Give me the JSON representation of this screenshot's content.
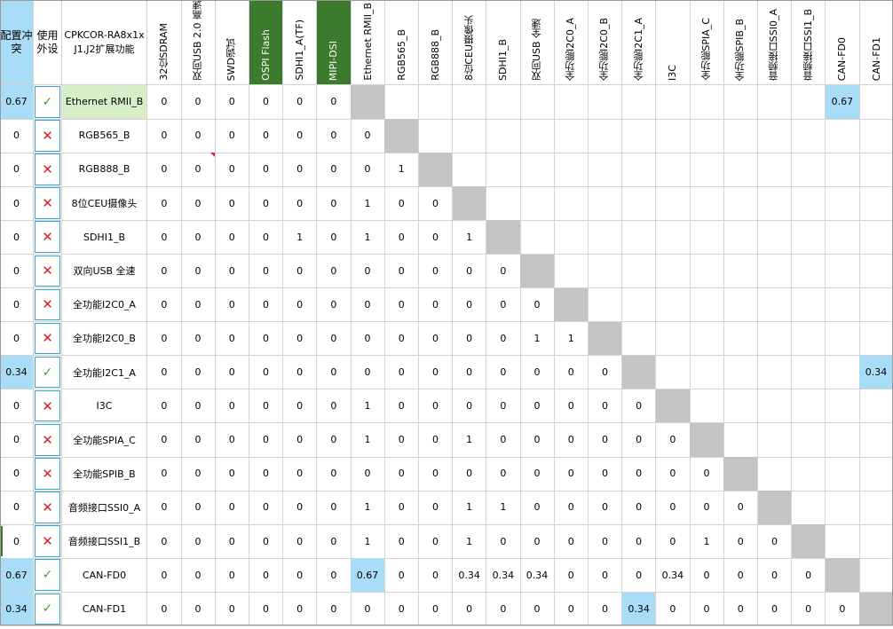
{
  "colors": {
    "blue_fill": "#a9dcf7",
    "green_header": "#3c7a2d",
    "green_row": "#d7efc8",
    "diag_gray": "#c4c4c4",
    "check_green": "#4a9a3a",
    "cross_red": "#e02020"
  },
  "corner": {
    "conflict_label": "配置冲突",
    "use_label": "使用外设",
    "title": "CPKCOR-RA8x1x J1,J2扩展功能"
  },
  "columns": [
    {
      "label": "32位SDRAM",
      "style": "normal"
    },
    {
      "label": "双向USB 2.0 高速",
      "style": "normal"
    },
    {
      "label": "SWD调试",
      "style": "normal"
    },
    {
      "label": "OSPI Flash",
      "style": "green"
    },
    {
      "label": "SDHI1_A(TF)",
      "style": "normal"
    },
    {
      "label": "MIPI-DSI",
      "style": "green"
    },
    {
      "label": "Ethernet RMII_B",
      "style": "normal"
    },
    {
      "label": "RGB565_B",
      "style": "normal"
    },
    {
      "label": "RGB888_B",
      "style": "normal"
    },
    {
      "label": "8位CEU摄像头",
      "style": "normal"
    },
    {
      "label": "SDHI1_B",
      "style": "normal"
    },
    {
      "label": "双向USB 全速",
      "style": "normal"
    },
    {
      "label": "全功能I2C0_A",
      "style": "normal"
    },
    {
      "label": "全功能I2C0_B",
      "style": "normal"
    },
    {
      "label": "全功能I2C1_A",
      "style": "normal"
    },
    {
      "label": "I3C",
      "style": "normal"
    },
    {
      "label": "全功能SPIA_C",
      "style": "normal"
    },
    {
      "label": "全功能SPIB_B",
      "style": "normal"
    },
    {
      "label": "音频接口SSI0_A",
      "style": "normal"
    },
    {
      "label": "音频接口SSI1_B",
      "style": "normal"
    },
    {
      "label": "CAN-FD0",
      "style": "normal"
    },
    {
      "label": "CAN-FD1",
      "style": "normal"
    }
  ],
  "rows": [
    {
      "conflict": "0.67",
      "conflict_hl": true,
      "use": "✓",
      "use_state": "yes",
      "name": "Ethernet RMII_B",
      "name_hl": true,
      "cells": [
        "0",
        "0",
        "0",
        "0",
        "0",
        "0",
        "",
        "",
        "",
        "",
        "",
        "",
        "",
        "",
        "",
        "",
        "",
        "",
        "",
        "",
        "0.67",
        ""
      ],
      "hl_cols": [
        20
      ]
    },
    {
      "conflict": "0",
      "use": "✕",
      "use_state": "no",
      "name": "RGB565_B",
      "cells": [
        "0",
        "0",
        "0",
        "0",
        "0",
        "0",
        "0",
        "",
        "",
        "",
        "",
        "",
        "",
        "",
        "",
        "",
        "",
        "",
        "",
        "",
        "",
        ""
      ]
    },
    {
      "conflict": "0",
      "use": "✕",
      "use_state": "no",
      "name": "RGB888_B",
      "cells": [
        "0",
        "0",
        "0",
        "0",
        "0",
        "0",
        "0",
        "1",
        "",
        "",
        "",
        "",
        "",
        "",
        "",
        "",
        "",
        "",
        "",
        "",
        "",
        ""
      ]
    },
    {
      "conflict": "0",
      "use": "✕",
      "use_state": "no",
      "name": "8位CEU摄像头",
      "cells": [
        "0",
        "0",
        "0",
        "0",
        "0",
        "0",
        "1",
        "0",
        "0",
        "",
        "",
        "",
        "",
        "",
        "",
        "",
        "",
        "",
        "",
        "",
        "",
        ""
      ]
    },
    {
      "conflict": "0",
      "use": "✕",
      "use_state": "no",
      "name": "SDHI1_B",
      "cells": [
        "0",
        "0",
        "0",
        "0",
        "1",
        "0",
        "1",
        "0",
        "0",
        "1",
        "",
        "",
        "",
        "",
        "",
        "",
        "",
        "",
        "",
        "",
        "",
        ""
      ]
    },
    {
      "conflict": "0",
      "use": "✕",
      "use_state": "no",
      "name": "双向USB 全速",
      "cells": [
        "0",
        "0",
        "0",
        "0",
        "0",
        "0",
        "0",
        "0",
        "0",
        "0",
        "0",
        "",
        "",
        "",
        "",
        "",
        "",
        "",
        "",
        "",
        "",
        ""
      ]
    },
    {
      "conflict": "0",
      "use": "✕",
      "use_state": "no",
      "name": "全功能I2C0_A",
      "cells": [
        "0",
        "0",
        "0",
        "0",
        "0",
        "0",
        "0",
        "0",
        "0",
        "0",
        "0",
        "0",
        "",
        "",
        "",
        "",
        "",
        "",
        "",
        "",
        "",
        ""
      ]
    },
    {
      "conflict": "0",
      "use": "✕",
      "use_state": "no",
      "name": "全功能I2C0_B",
      "cells": [
        "0",
        "0",
        "0",
        "0",
        "0",
        "0",
        "0",
        "0",
        "0",
        "0",
        "0",
        "1",
        "1",
        "",
        "",
        "",
        "",
        "",
        "",
        "",
        "",
        ""
      ]
    },
    {
      "conflict": "0.34",
      "conflict_hl": true,
      "use": "✓",
      "use_state": "yes",
      "name": "全功能I2C1_A",
      "cells": [
        "0",
        "0",
        "0",
        "0",
        "0",
        "0",
        "0",
        "0",
        "0",
        "0",
        "0",
        "0",
        "0",
        "0",
        "",
        "",
        "",
        "",
        "",
        "",
        "",
        "0.34"
      ],
      "hl_cols": [
        21
      ]
    },
    {
      "conflict": "0",
      "use": "✕",
      "use_state": "no",
      "name": "I3C",
      "cells": [
        "0",
        "0",
        "0",
        "0",
        "0",
        "0",
        "1",
        "0",
        "0",
        "0",
        "0",
        "0",
        "0",
        "0",
        "0",
        "",
        "",
        "",
        "",
        "",
        "",
        ""
      ]
    },
    {
      "conflict": "0",
      "use": "✕",
      "use_state": "no",
      "name": "全功能SPIA_C",
      "cells": [
        "0",
        "0",
        "0",
        "0",
        "0",
        "0",
        "1",
        "0",
        "0",
        "1",
        "0",
        "0",
        "0",
        "0",
        "0",
        "0",
        "",
        "",
        "",
        "",
        "",
        ""
      ]
    },
    {
      "conflict": "0",
      "use": "✕",
      "use_state": "no",
      "name": "全功能SPIB_B",
      "cells": [
        "0",
        "0",
        "0",
        "0",
        "0",
        "0",
        "0",
        "0",
        "0",
        "0",
        "0",
        "0",
        "0",
        "0",
        "0",
        "0",
        "0",
        "",
        "",
        "",
        "",
        ""
      ]
    },
    {
      "conflict": "0",
      "use": "✕",
      "use_state": "no",
      "name": "音频接口SSI0_A",
      "cells": [
        "0",
        "0",
        "0",
        "0",
        "0",
        "0",
        "1",
        "0",
        "0",
        "1",
        "1",
        "0",
        "0",
        "0",
        "0",
        "0",
        "0",
        "0",
        "",
        "",
        "",
        ""
      ]
    },
    {
      "conflict": "0",
      "use": "✕",
      "use_state": "no",
      "name": "音频接口SSI1_B",
      "cells": [
        "0",
        "0",
        "0",
        "0",
        "0",
        "0",
        "1",
        "0",
        "0",
        "1",
        "0",
        "0",
        "0",
        "0",
        "0",
        "0",
        "1",
        "0",
        "0",
        "",
        "",
        ""
      ]
    },
    {
      "conflict": "0.67",
      "conflict_hl": true,
      "use": "✓",
      "use_state": "yes",
      "name": "CAN-FD0",
      "cells": [
        "0",
        "0",
        "0",
        "0",
        "0",
        "0",
        "0.67",
        "0",
        "0",
        "0.34",
        "0.34",
        "0.34",
        "0",
        "0",
        "0",
        "0.34",
        "0",
        "0",
        "0",
        "0",
        "",
        ""
      ],
      "hl_cols": [
        6
      ]
    },
    {
      "conflict": "0.34",
      "conflict_hl": true,
      "use": "✓",
      "use_state": "yes",
      "name": "CAN-FD1",
      "cells": [
        "0",
        "0",
        "0",
        "0",
        "0",
        "0",
        "0",
        "0",
        "0",
        "0",
        "0",
        "0",
        "0",
        "0",
        "0.34",
        "0",
        "0",
        "0",
        "0",
        "0",
        "0",
        ""
      ],
      "hl_cols": [
        14
      ]
    }
  ]
}
